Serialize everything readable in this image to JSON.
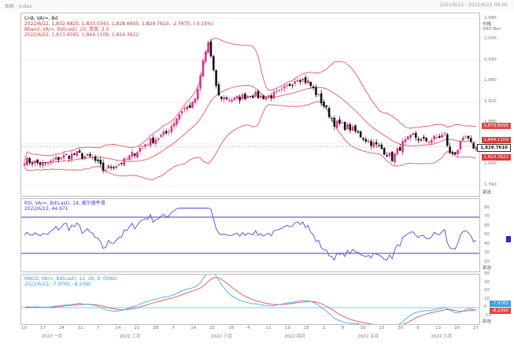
{
  "window": {
    "title": "图表 - Index",
    "right_info": "2022/6/22 · 2022/6/22 09:05"
  },
  "price_pane": {
    "legend": {
      "line1": "Cn8, VA/=, Bd",
      "line2": "2022/6/22, 1,832.6825, 1,833.0343, 1,828.6605, 1,829.7610, -2.7675, (-0.15%)",
      "line3": "Bband, VA/=, Bd(Last), 20, 简单, 2.0",
      "line4": "2022/6/22, 1,873.8595, 1,844.1109, 1,814.3622"
    },
    "axis_title": "价格",
    "axis_subtitle": "SND\nBas",
    "ticks": [
      "2,080",
      "2,040",
      "2,000",
      "1,960",
      "1,920",
      "1,880",
      "1,840",
      "1,800",
      "1,760"
    ],
    "tags": [
      {
        "text": "1,873.8595",
        "color": "#e04848"
      },
      {
        "text": "1,844.1109",
        "color": "#d53a3a"
      },
      {
        "text": "1,829.7610",
        "color": "#ffffff",
        "text_color": "#111111"
      },
      {
        "text": "1,814.3622",
        "color": "#d53a3a"
      }
    ],
    "corner": "部选"
  },
  "rsi_pane": {
    "legend": {
      "line1": "RSI, VA/=, Bd(Last), 14, 威尔德平滑",
      "line2": "2022/6/22, 44.971"
    },
    "ticks": [
      "80",
      "70",
      "60",
      "50",
      "40",
      "30",
      "20"
    ],
    "corner": "部选",
    "upper_level": 70,
    "lower_level": 30
  },
  "macd_pane": {
    "legend": {
      "line1": "MACD, VA/=, Bd(Last), 12, 26, 9, (EMA)",
      "line2": "2022/6/22, -7.9765, -8.2390"
    },
    "ticks": [
      "40",
      "30",
      "20",
      "10",
      "0",
      "-10"
    ],
    "tags": [
      {
        "text": "-7.9765",
        "color": "#3aa0e0"
      },
      {
        "text": "-8.2390",
        "color": "#e04848"
      }
    ],
    "corner": "部选"
  },
  "x_axis": {
    "day_labels": [
      "10",
      "17",
      "24",
      "31",
      "7",
      "14",
      "21",
      "28",
      "7",
      "14",
      "21",
      "28",
      "4",
      "11",
      "19",
      "25",
      "2",
      "9",
      "16",
      "23",
      "30",
      "6",
      "13",
      "20",
      "27"
    ],
    "month_labels": [
      "2022 一月",
      "2022 二月",
      "2022 三月",
      "2022 四月",
      "2022 五月",
      "2022 六月"
    ]
  },
  "colors": {
    "up": "#e0328c",
    "down": "#111111",
    "bband": "#e05a5a",
    "rsi_line": "#4a4fd8",
    "rsi_levels": "#3d3dd0",
    "macd": "#4aa8e8",
    "signal": "#e05050"
  }
}
